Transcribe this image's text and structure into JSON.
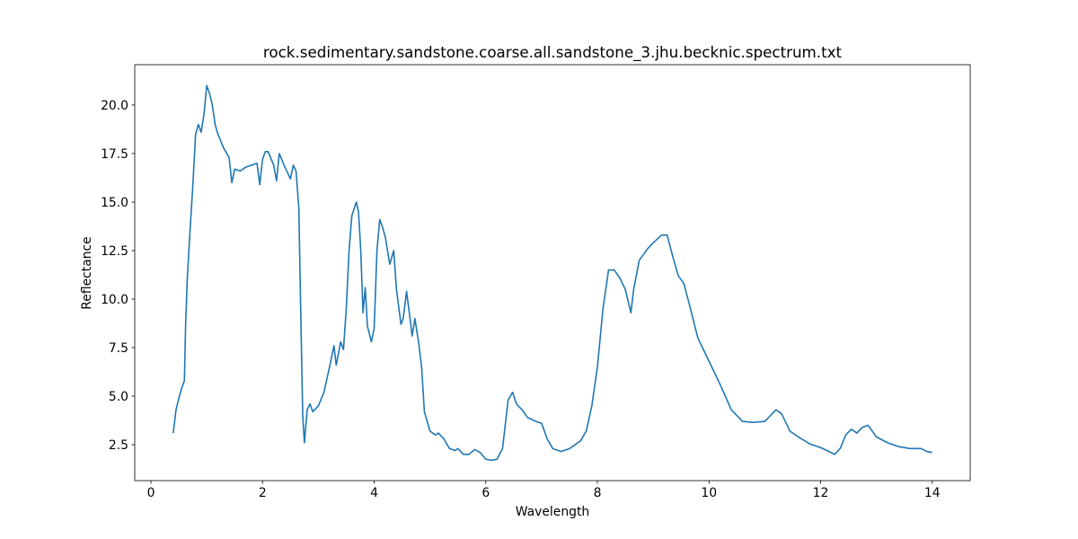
{
  "chart_data": {
    "type": "line",
    "title": "rock.sedimentary.sandstone.coarse.all.sandstone_3.jhu.becknic.spectrum.txt",
    "x_label": "Wavelength",
    "y_label": "Reflectance",
    "xlim": [
      -0.29,
      14.68
    ],
    "ylim": [
      0.65,
      22.08
    ],
    "xticks": [
      0,
      2,
      4,
      6,
      8,
      10,
      12,
      14
    ],
    "yticks": [
      {
        "value": 2.5,
        "label": "2.5"
      },
      {
        "value": 5,
        "label": "5.0"
      },
      {
        "value": 7.5,
        "label": "7.5"
      },
      {
        "value": 10,
        "label": "10.0"
      },
      {
        "value": 12.5,
        "label": "12.5"
      },
      {
        "value": 15,
        "label": "15.0"
      },
      {
        "value": 17.5,
        "label": "17.5"
      },
      {
        "value": 20,
        "label": "20.0"
      }
    ],
    "grid": false,
    "series": [
      {
        "name": "spectrum",
        "color": "#1f77b4",
        "x": [
          0.4,
          0.45,
          0.5,
          0.55,
          0.6,
          0.62,
          0.65,
          0.7,
          0.75,
          0.8,
          0.85,
          0.9,
          0.95,
          1.0,
          1.05,
          1.1,
          1.15,
          1.2,
          1.3,
          1.4,
          1.45,
          1.5,
          1.6,
          1.7,
          1.8,
          1.9,
          1.95,
          2.0,
          2.05,
          2.1,
          2.2,
          2.25,
          2.3,
          2.4,
          2.5,
          2.55,
          2.6,
          2.65,
          2.68,
          2.72,
          2.75,
          2.8,
          2.85,
          2.9,
          3.0,
          3.1,
          3.2,
          3.28,
          3.32,
          3.4,
          3.45,
          3.5,
          3.55,
          3.6,
          3.68,
          3.72,
          3.76,
          3.8,
          3.84,
          3.88,
          3.95,
          4.0,
          4.05,
          4.1,
          4.15,
          4.2,
          4.25,
          4.28,
          4.35,
          4.4,
          4.48,
          4.52,
          4.58,
          4.63,
          4.68,
          4.73,
          4.8,
          4.85,
          4.9,
          5.0,
          5.1,
          5.15,
          5.25,
          5.35,
          5.45,
          5.5,
          5.6,
          5.7,
          5.8,
          5.9,
          6.0,
          6.1,
          6.2,
          6.3,
          6.4,
          6.48,
          6.55,
          6.65,
          6.75,
          6.9,
          7.0,
          7.1,
          7.2,
          7.35,
          7.5,
          7.7,
          7.8,
          7.9,
          8.0,
          8.1,
          8.2,
          8.3,
          8.4,
          8.5,
          8.6,
          8.65,
          8.75,
          8.9,
          9.0,
          9.15,
          9.25,
          9.35,
          9.45,
          9.55,
          9.65,
          9.8,
          10.0,
          10.2,
          10.4,
          10.6,
          10.8,
          11.0,
          11.1,
          11.2,
          11.3,
          11.45,
          11.6,
          11.8,
          12.0,
          12.15,
          12.25,
          12.35,
          12.45,
          12.55,
          12.65,
          12.75,
          12.85,
          13.0,
          13.2,
          13.4,
          13.6,
          13.8,
          13.9,
          14.0
        ],
        "values": [
          3.1,
          4.3,
          4.9,
          5.4,
          5.8,
          8.5,
          11.0,
          13.5,
          15.8,
          18.5,
          19.0,
          18.6,
          19.5,
          21.0,
          20.6,
          20.0,
          19.0,
          18.5,
          17.8,
          17.3,
          16.0,
          16.7,
          16.6,
          16.8,
          16.9,
          17.0,
          15.9,
          17.2,
          17.6,
          17.6,
          16.9,
          16.1,
          17.5,
          16.8,
          16.2,
          16.9,
          16.6,
          14.7,
          10.0,
          4.0,
          2.6,
          4.3,
          4.6,
          4.2,
          4.5,
          5.2,
          6.5,
          7.6,
          6.6,
          7.8,
          7.4,
          9.5,
          12.5,
          14.3,
          15.0,
          14.5,
          12.5,
          9.3,
          10.6,
          8.6,
          7.8,
          8.5,
          12.5,
          14.1,
          13.7,
          13.2,
          12.3,
          11.8,
          12.5,
          10.5,
          8.7,
          9.0,
          10.4,
          9.3,
          8.1,
          9.0,
          7.7,
          6.5,
          4.2,
          3.2,
          3.0,
          3.1,
          2.8,
          2.3,
          2.2,
          2.3,
          2.0,
          2.0,
          2.25,
          2.1,
          1.75,
          1.7,
          1.75,
          2.3,
          4.8,
          5.2,
          4.6,
          4.3,
          3.9,
          3.7,
          3.6,
          2.8,
          2.3,
          2.15,
          2.3,
          2.7,
          3.2,
          4.5,
          6.5,
          9.5,
          11.5,
          11.5,
          11.1,
          10.5,
          9.3,
          10.5,
          12.0,
          12.6,
          12.9,
          13.3,
          13.3,
          12.2,
          11.2,
          10.8,
          9.7,
          8.0,
          6.8,
          5.6,
          4.3,
          3.7,
          3.65,
          3.7,
          4.0,
          4.3,
          4.1,
          3.2,
          2.9,
          2.55,
          2.35,
          2.15,
          2.0,
          2.3,
          3.0,
          3.3,
          3.1,
          3.4,
          3.5,
          2.9,
          2.6,
          2.4,
          2.3,
          2.3,
          2.15,
          2.1
        ]
      }
    ]
  }
}
